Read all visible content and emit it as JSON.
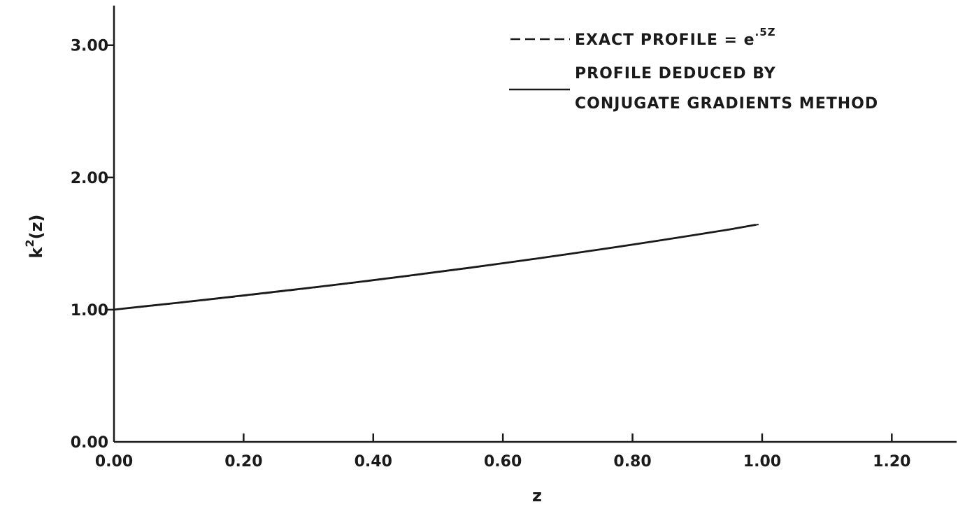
{
  "chart_data": {
    "type": "line",
    "xlabel": "z",
    "ylabel": "k",
    "ylabel_superscript": "2",
    "ylabel_suffix": "(z)",
    "xlim": [
      0.0,
      1.3
    ],
    "ylim": [
      0.0,
      3.3
    ],
    "x_ticks": [
      0.0,
      0.2,
      0.4,
      0.6,
      0.8,
      1.0,
      1.2
    ],
    "x_tick_labels": [
      "0.00",
      "0.20",
      "0.40",
      "0.60",
      "0.80",
      "1.00",
      "1.20"
    ],
    "y_ticks": [
      0.0,
      1.0,
      2.0,
      3.0
    ],
    "y_tick_labels": [
      "0.00",
      "1.00",
      "2.00",
      "3.00"
    ],
    "grid": false,
    "legend_position": "top-right",
    "legend": {
      "exact_text": "EXACT  PROFILE = e",
      "exact_superscript": ".5Z",
      "deduced_line1": "PROFILE  DEDUCED  BY",
      "deduced_line2": "CONJUGATE  GRADIENTS  METHOD"
    },
    "series": [
      {
        "style": "dashed",
        "x": [
          0.0,
          0.05,
          0.1,
          0.15,
          0.2,
          0.25,
          0.3,
          0.35,
          0.4,
          0.45,
          0.5,
          0.55,
          0.6,
          0.65,
          0.7,
          0.75,
          0.8,
          0.85,
          0.9,
          0.95,
          1.0
        ],
        "y": [
          1.0,
          1.025,
          1.051,
          1.078,
          1.105,
          1.133,
          1.162,
          1.191,
          1.221,
          1.252,
          1.284,
          1.316,
          1.35,
          1.384,
          1.419,
          1.455,
          1.492,
          1.53,
          1.568,
          1.608,
          1.649
        ]
      },
      {
        "style": "solid",
        "x": [
          0.0,
          0.05,
          0.1,
          0.15,
          0.2,
          0.25,
          0.3,
          0.35,
          0.4,
          0.45,
          0.5,
          0.55,
          0.6,
          0.65,
          0.7,
          0.75,
          0.8,
          0.85,
          0.9,
          0.95,
          0.99
        ],
        "y": [
          1.0,
          1.027,
          1.053,
          1.08,
          1.108,
          1.136,
          1.164,
          1.193,
          1.223,
          1.254,
          1.286,
          1.318,
          1.351,
          1.385,
          1.42,
          1.456,
          1.492,
          1.53,
          1.568,
          1.607,
          1.642
        ]
      }
    ]
  }
}
